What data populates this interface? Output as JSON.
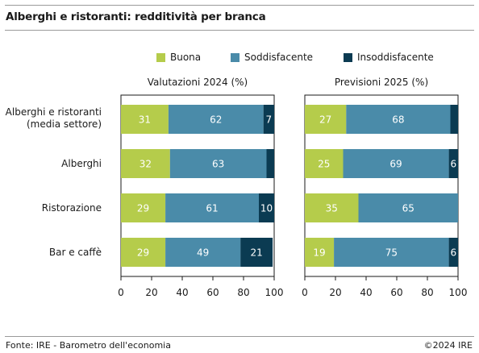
{
  "title": "Alberghi e ristoranti: redditività per branca",
  "legend": [
    {
      "name": "Buona",
      "color": "#b5cc4b"
    },
    {
      "name": "Soddisfacente",
      "color": "#4a8ba9"
    },
    {
      "name": "Insoddisfacente",
      "color": "#0b3b52"
    }
  ],
  "footer": {
    "source": "Fonte: IRE - Barometro dell'economia",
    "copyright": "©2024 IRE"
  },
  "categories": [
    {
      "lines": [
        "Alberghi e ristoranti",
        "(media settore)"
      ]
    },
    {
      "lines": [
        "Alberghi"
      ]
    },
    {
      "lines": [
        "Ristorazione"
      ]
    },
    {
      "lines": [
        "Bar e caffè"
      ]
    }
  ],
  "chart_data": [
    {
      "type": "bar",
      "stacked": true,
      "orientation": "horizontal",
      "title": "Valutazioni 2024 (%)",
      "categories": [
        "Alberghi e ristoranti (media settore)",
        "Alberghi",
        "Ristorazione",
        "Bar e caffè"
      ],
      "series": [
        {
          "name": "Buona",
          "values": [
            31,
            32,
            29,
            29
          ]
        },
        {
          "name": "Soddisfacente",
          "values": [
            62,
            63,
            61,
            49
          ]
        },
        {
          "name": "Insoddisfacente",
          "values": [
            7,
            5,
            10,
            21
          ]
        }
      ],
      "data_labels": [
        [
          "31",
          "62",
          "7"
        ],
        [
          "32",
          "63",
          ""
        ],
        [
          "29",
          "61",
          "10"
        ],
        [
          "29",
          "49",
          "21"
        ]
      ],
      "xlim": [
        0,
        100
      ],
      "xticks": [
        "0",
        "20",
        "40",
        "60",
        "80",
        "100"
      ]
    },
    {
      "type": "bar",
      "stacked": true,
      "orientation": "horizontal",
      "title": "Previsioni 2025 (%)",
      "categories": [
        "Alberghi e ristoranti (media settore)",
        "Alberghi",
        "Ristorazione",
        "Bar e caffè"
      ],
      "series": [
        {
          "name": "Buona",
          "values": [
            27,
            25,
            35,
            19
          ]
        },
        {
          "name": "Soddisfacente",
          "values": [
            68,
            69,
            65,
            75
          ]
        },
        {
          "name": "Insoddisfacente",
          "values": [
            5,
            6,
            0,
            6
          ]
        }
      ],
      "data_labels": [
        [
          "27",
          "68",
          ""
        ],
        [
          "25",
          "69",
          "6"
        ],
        [
          "35",
          "65",
          ""
        ],
        [
          "19",
          "75",
          "6"
        ]
      ],
      "xlim": [
        0,
        100
      ],
      "xticks": [
        "0",
        "20",
        "40",
        "60",
        "80",
        "100"
      ]
    }
  ]
}
